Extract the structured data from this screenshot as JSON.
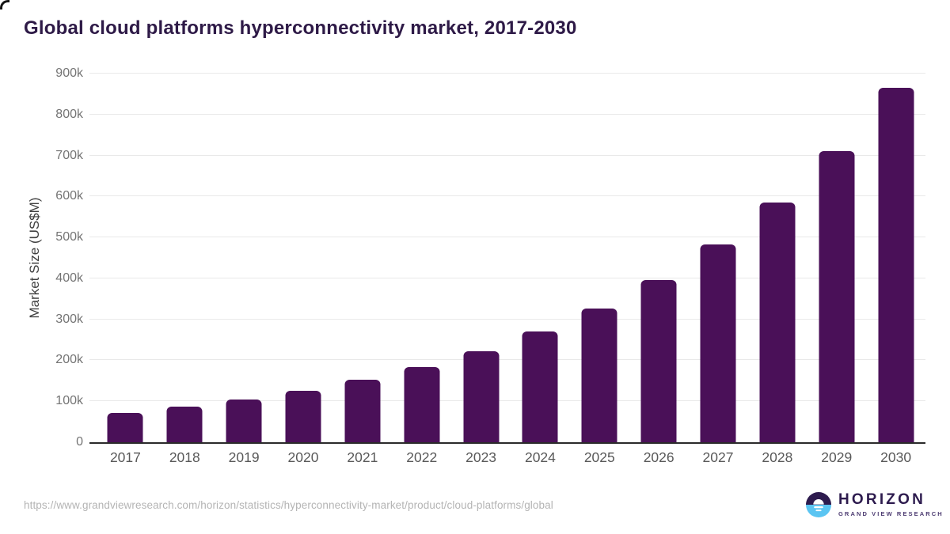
{
  "title": "Global cloud platforms hyperconnectivity market, 2017-2030",
  "chart_data": {
    "type": "bar",
    "title": "Global cloud platforms hyperconnectivity market, 2017-2030",
    "categories": [
      "2017",
      "2018",
      "2019",
      "2020",
      "2021",
      "2022",
      "2023",
      "2024",
      "2025",
      "2026",
      "2027",
      "2028",
      "2029",
      "2030"
    ],
    "values": [
      71000,
      87000,
      104000,
      125000,
      152000,
      184000,
      223000,
      270000,
      327000,
      396000,
      482000,
      585000,
      710000,
      865000
    ],
    "xlabel": "",
    "ylabel": "Market Size (US$M)",
    "ylim": [
      0,
      900000
    ],
    "ytick_values": [
      0,
      100000,
      200000,
      300000,
      400000,
      500000,
      600000,
      700000,
      800000,
      900000
    ],
    "ytick_labels": [
      "0",
      "100k",
      "200k",
      "300k",
      "400k",
      "500k",
      "600k",
      "700k",
      "800k",
      "900k"
    ],
    "grid": "horizontal",
    "legend": false,
    "bar_color": "#4a1058"
  },
  "colors": {
    "title_text": "#2e1a47",
    "bar": "#4a1058",
    "gridline": "#e9e9e9",
    "axis_line": "#2b2b2b",
    "tick_text": "#747474",
    "x_label_text": "#595959",
    "footer_text": "#b4b4b4",
    "logo_purple": "#2d1b4e",
    "logo_blue": "#5bc5f2"
  },
  "footer": {
    "source_url": "https://www.grandviewresearch.com/horizon/statistics/hyperconnectivity-market/product/cloud-platforms/global",
    "logo": {
      "brand": "HORIZON",
      "sub_brand": "GRAND VIEW RESEARCH"
    }
  }
}
